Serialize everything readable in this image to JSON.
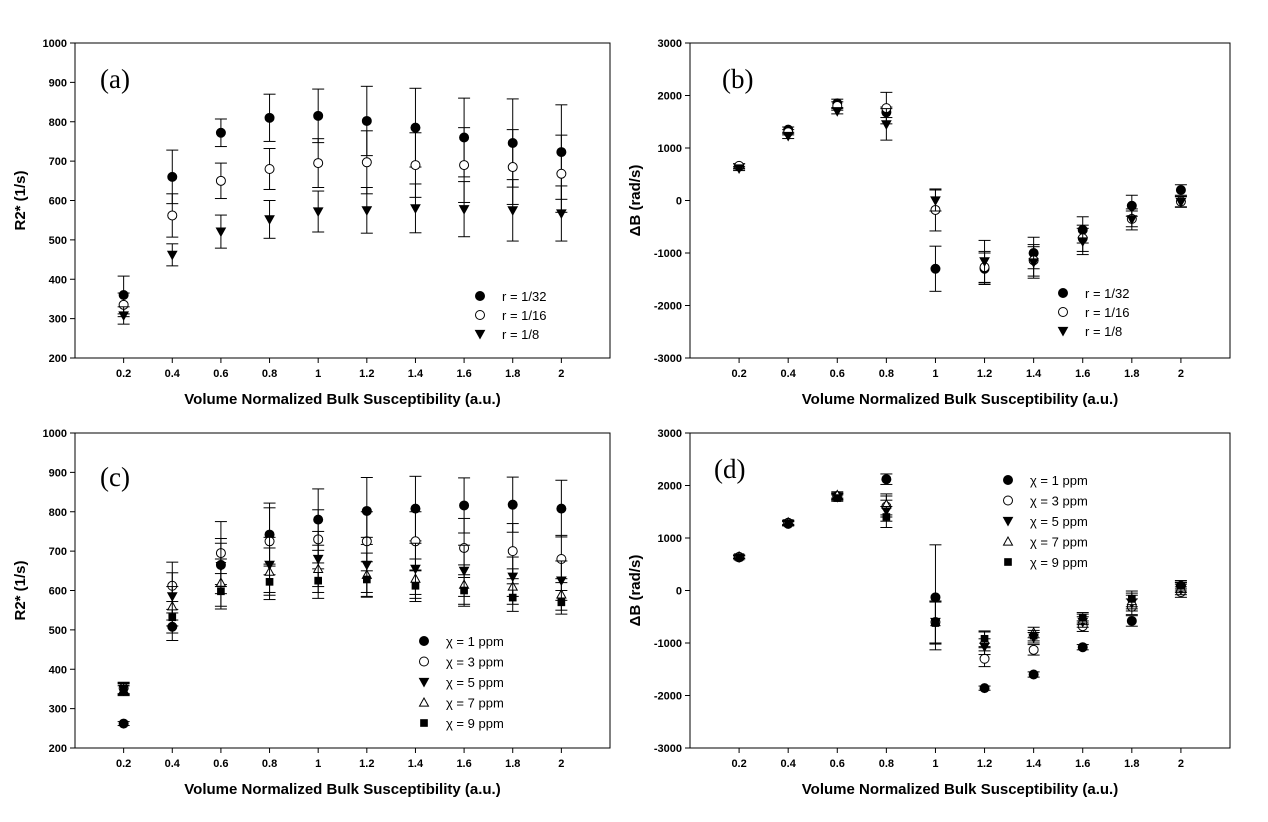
{
  "figure": {
    "panels": [
      "a",
      "b",
      "c",
      "d"
    ]
  },
  "chart_data": [
    {
      "panel_label": "(a)",
      "type": "scatter",
      "xlabel": "Volume Normalized Bulk Susceptibility (a.u.)",
      "ylabel": "R2* (1/s)",
      "ylim": [
        200,
        1000
      ],
      "yticks": [
        "200",
        "300",
        "400",
        "500",
        "600",
        "700",
        "800",
        "900",
        "1000"
      ],
      "x": [
        0.2,
        0.4,
        0.6,
        0.8,
        1,
        1.2,
        1.4,
        1.6,
        1.8,
        2
      ],
      "xtick_labels": [
        "0.2",
        "0.4",
        "0.6",
        "0.8",
        "1",
        "1.2",
        "1.4",
        "1.6",
        "1.8",
        "2"
      ],
      "legend_position": "bottom-right",
      "series": [
        {
          "name": "r = 1/32",
          "marker": "filled-circle",
          "values": [
            360,
            660,
            772,
            810,
            815,
            802,
            785,
            760,
            746,
            723
          ],
          "errors": [
            48,
            68,
            35,
            60,
            68,
            88,
            100,
            100,
            112,
            120
          ]
        },
        {
          "name": "r = 1/16",
          "marker": "open-circle",
          "values": [
            335,
            562,
            650,
            680,
            695,
            697,
            690,
            690,
            685,
            668
          ],
          "errors": [
            30,
            55,
            45,
            52,
            62,
            80,
            82,
            95,
            95,
            98
          ]
        },
        {
          "name": "r = 1/8",
          "marker": "filled-triangle-down",
          "values": [
            308,
            462,
            521,
            552,
            572,
            575,
            580,
            578,
            575,
            567
          ],
          "errors": [
            22,
            28,
            42,
            48,
            52,
            58,
            62,
            70,
            78,
            70
          ]
        }
      ]
    },
    {
      "panel_label": "(b)",
      "type": "scatter",
      "xlabel": "Volume Normalized Bulk Susceptibility (a.u.)",
      "ylabel": "ΔB (rad/s)",
      "ylim": [
        -3000,
        3000
      ],
      "yticks": [
        "-3000",
        "-2000",
        "-1000",
        "0",
        "1000",
        "2000",
        "3000"
      ],
      "x": [
        0.2,
        0.4,
        0.6,
        0.8,
        1,
        1.2,
        1.4,
        1.6,
        1.8,
        2
      ],
      "xtick_labels": [
        "0.2",
        "0.4",
        "0.6",
        "0.8",
        "1",
        "1.2",
        "1.4",
        "1.6",
        "1.8",
        "2"
      ],
      "legend_position": "bottom-right",
      "series": [
        {
          "name": "r = 1/32",
          "marker": "filled-circle",
          "values": [
            650,
            1350,
            1850,
            1680,
            -1300,
            -1300,
            -1000,
            -560,
            -100,
            200
          ],
          "errors": [
            50,
            50,
            80,
            100,
            430,
            300,
            300,
            250,
            200,
            100
          ]
        },
        {
          "name": "r = 1/16",
          "marker": "open-circle",
          "values": [
            660,
            1300,
            1800,
            1760,
            -180,
            -1270,
            -1140,
            -720,
            -350,
            -20
          ],
          "errors": [
            40,
            50,
            80,
            300,
            400,
            300,
            300,
            250,
            150,
            100
          ]
        },
        {
          "name": "r = 1/8",
          "marker": "filled-triangle-down",
          "values": [
            610,
            1230,
            1700,
            1450,
            0,
            -1160,
            -1180,
            -780,
            -360,
            -30
          ],
          "errors": [
            40,
            50,
            50,
            300,
            200,
            400,
            300,
            250,
            200,
            100
          ]
        }
      ]
    },
    {
      "panel_label": "(c)",
      "type": "scatter",
      "xlabel": "Volume Normalized Bulk Susceptibility (a.u.)",
      "ylabel": "R2* (1/s)",
      "ylim": [
        200,
        1000
      ],
      "yticks": [
        "200",
        "300",
        "400",
        "500",
        "600",
        "700",
        "800",
        "900",
        "1000"
      ],
      "x": [
        0.2,
        0.4,
        0.6,
        0.8,
        1,
        1.2,
        1.4,
        1.6,
        1.8,
        2
      ],
      "xtick_labels": [
        "0.2",
        "0.4",
        "0.6",
        "0.8",
        "1",
        "1.2",
        "1.4",
        "1.6",
        "1.8",
        "2"
      ],
      "legend_position": "bottom-right",
      "series": [
        {
          "name": "χ = 1 ppm",
          "marker": "filled-circle",
          "values": [
            262,
            508,
            665,
            742,
            780,
            802,
            808,
            816,
            818,
            808
          ],
          "errors": [
            5,
            35,
            55,
            80,
            78,
            85,
            82,
            70,
            70,
            72
          ]
        },
        {
          "name": "χ = 3 ppm",
          "marker": "open-circle",
          "values": [
            352,
            612,
            695,
            725,
            730,
            725,
            725,
            708,
            700,
            680
          ],
          "errors": [
            15,
            60,
            80,
            85,
            75,
            75,
            75,
            75,
            70,
            60
          ]
        },
        {
          "name": "χ = 5 ppm",
          "marker": "filled-triangle-down",
          "values": [
            350,
            585,
            662,
            665,
            680,
            665,
            655,
            650,
            635,
            625
          ],
          "errors": [
            15,
            60,
            70,
            70,
            70,
            70,
            65,
            65,
            50,
            50
          ]
        },
        {
          "name": "χ = 7 ppm",
          "marker": "open-triangle-up",
          "values": [
            348,
            560,
            620,
            648,
            655,
            640,
            630,
            615,
            610,
            590
          ],
          "errors": [
            15,
            50,
            60,
            60,
            60,
            55,
            50,
            50,
            45,
            40
          ]
        },
        {
          "name": "χ = 9 ppm",
          "marker": "filled-square",
          "values": [
            348,
            532,
            598,
            622,
            625,
            628,
            612,
            600,
            582,
            570
          ],
          "errors": [
            10,
            40,
            45,
            45,
            45,
            45,
            40,
            40,
            35,
            30
          ]
        }
      ]
    },
    {
      "panel_label": "(d)",
      "type": "scatter",
      "xlabel": "Volume Normalized Bulk Susceptibility (a.u.)",
      "ylabel": "ΔB (rad/s)",
      "ylim": [
        -3000,
        3000
      ],
      "yticks": [
        "-3000",
        "-2000",
        "-1000",
        "0",
        "1000",
        "2000",
        "3000"
      ],
      "x": [
        0.2,
        0.4,
        0.6,
        0.8,
        1,
        1.2,
        1.4,
        1.6,
        1.8,
        2
      ],
      "xtick_labels": [
        "0.2",
        "0.4",
        "0.6",
        "0.8",
        "1",
        "1.2",
        "1.4",
        "1.6",
        "1.8",
        "2"
      ],
      "legend_position": "top-center",
      "series": [
        {
          "name": "χ = 1 ppm",
          "marker": "filled-circle",
          "values": [
            630,
            1270,
            1800,
            2120,
            -130,
            -1860,
            -1600,
            -1080,
            -580,
            90
          ],
          "errors": [
            30,
            40,
            60,
            100,
            1000,
            40,
            50,
            50,
            100,
            60
          ]
        },
        {
          "name": "χ = 3 ppm",
          "marker": "open-circle",
          "values": [
            640,
            1290,
            1790,
            1600,
            -600,
            -1300,
            -1130,
            -680,
            -310,
            -30
          ],
          "errors": [
            30,
            40,
            60,
            200,
            400,
            150,
            100,
            100,
            150,
            100
          ]
        },
        {
          "name": "χ = 5 ppm",
          "marker": "filled-triangle-down",
          "values": [
            630,
            1280,
            1780,
            1520,
            -600,
            -1070,
            -900,
            -600,
            -240,
            20
          ],
          "errors": [
            30,
            40,
            60,
            200,
            400,
            150,
            100,
            100,
            150,
            100
          ]
        },
        {
          "name": "χ = 7 ppm",
          "marker": "open-triangle-up",
          "values": [
            650,
            1300,
            1820,
            1640,
            -600,
            -940,
            -800,
            -550,
            -200,
            60
          ],
          "errors": [
            30,
            40,
            60,
            200,
            400,
            150,
            100,
            100,
            150,
            100
          ]
        },
        {
          "name": "χ = 9 ppm",
          "marker": "filled-square",
          "values": [
            630,
            1280,
            1760,
            1400,
            -620,
            -920,
            -860,
            -520,
            -160,
            90
          ],
          "errors": [
            30,
            40,
            60,
            200,
            400,
            150,
            100,
            100,
            150,
            100
          ]
        }
      ]
    }
  ]
}
